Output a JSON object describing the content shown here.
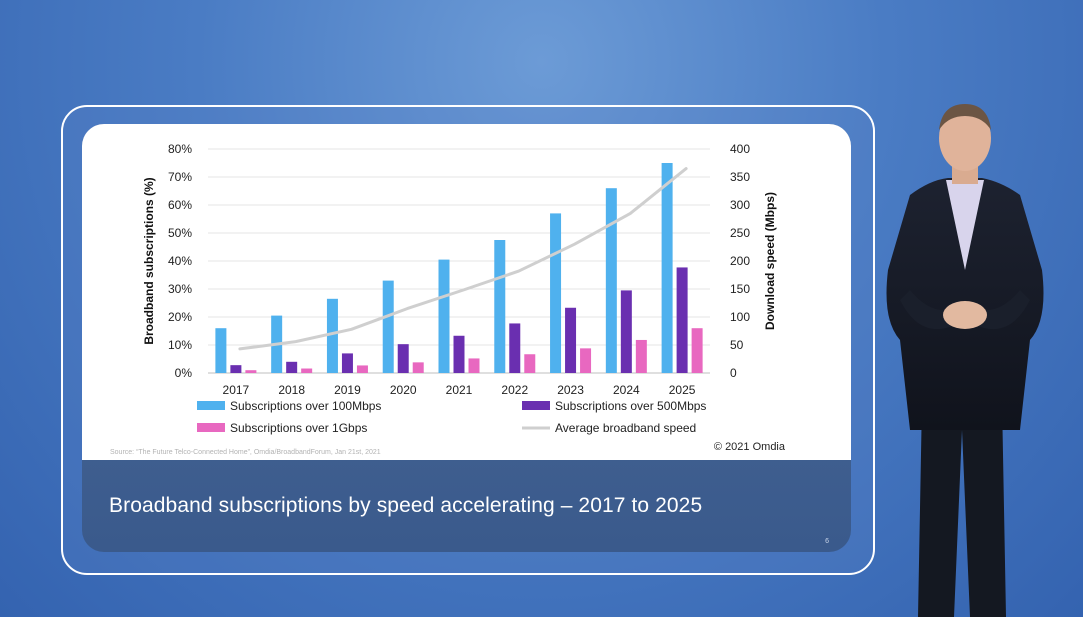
{
  "slide": {
    "caption": "Broadband subscriptions by speed accelerating – 2017 to 2025",
    "page_number": "6",
    "source": "Source: “The Future Telco-Connected Home”, Omdia/BroadbandForum, Jan 21st, 2021",
    "copyright": "© 2021 Omdia"
  },
  "chart_data": {
    "type": "bar",
    "categories": [
      "2017",
      "2018",
      "2019",
      "2020",
      "2021",
      "2022",
      "2023",
      "2024",
      "2025"
    ],
    "ylabel": "Broadband subscriptions (%)",
    "y2label": "Download speed (Mbps)",
    "ylim": [
      0,
      80
    ],
    "y2lim": [
      0,
      400
    ],
    "yticks": [
      "0%",
      "10%",
      "20%",
      "30%",
      "40%",
      "50%",
      "60%",
      "70%",
      "80%"
    ],
    "y2ticks": [
      "0",
      "50",
      "100",
      "150",
      "200",
      "250",
      "300",
      "350",
      "400"
    ],
    "grid": true,
    "legend_position": "bottom",
    "series": [
      {
        "name": "Subscriptions over 100Mbps",
        "kind": "bar",
        "axis": "left",
        "color": "#4fb1ee",
        "values": [
          16,
          20.5,
          26.5,
          33,
          40.5,
          47.5,
          57,
          66,
          75
        ]
      },
      {
        "name": "Subscriptions over 500Mbps",
        "kind": "bar",
        "axis": "left",
        "color": "#6a2fb0",
        "values": [
          2.8,
          4,
          7,
          10.3,
          13.3,
          17.7,
          23.3,
          29.5,
          37.7
        ]
      },
      {
        "name": "Subscriptions over 1Gbps",
        "kind": "bar",
        "axis": "left",
        "color": "#e868c0",
        "values": [
          1,
          1.6,
          2.7,
          3.8,
          5.2,
          6.7,
          8.8,
          11.8,
          16
        ]
      },
      {
        "name": "Average broadband speed",
        "kind": "line",
        "axis": "right",
        "color": "#cfcfcf",
        "values": [
          43,
          56,
          78,
          115,
          148,
          182,
          230,
          285,
          365
        ]
      }
    ]
  }
}
